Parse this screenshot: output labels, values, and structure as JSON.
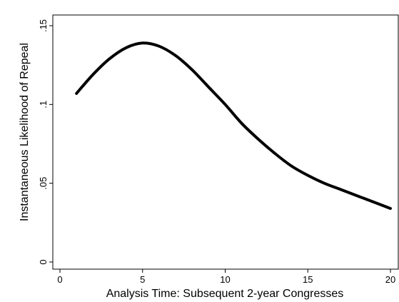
{
  "chart_data": {
    "type": "line",
    "title": "",
    "xlabel": "Analysis Time: Subsequent 2-year Congresses",
    "ylabel": "Instantaneous Likelihood of Repeal",
    "xlim": [
      0,
      20
    ],
    "ylim": [
      0,
      0.15
    ],
    "xticks": [
      0,
      5,
      10,
      15,
      20
    ],
    "xtick_labels": [
      "0",
      "5",
      "10",
      "15",
      "20"
    ],
    "yticks": [
      0,
      0.05,
      0.1,
      0.15
    ],
    "ytick_labels": [
      "0",
      ".05",
      ".1",
      ".15"
    ],
    "grid": false,
    "legend": "none",
    "series": [
      {
        "color": "#000000",
        "x": [
          1,
          2,
          3,
          4,
          5,
          6,
          7,
          8,
          9,
          10,
          11,
          12,
          13,
          14,
          15,
          16,
          17,
          18,
          19,
          20
        ],
        "y": [
          0.107,
          0.119,
          0.129,
          0.136,
          0.139,
          0.137,
          0.131,
          0.122,
          0.111,
          0.1,
          0.088,
          0.078,
          0.069,
          0.061,
          0.055,
          0.05,
          0.046,
          0.042,
          0.038,
          0.034
        ]
      }
    ]
  }
}
